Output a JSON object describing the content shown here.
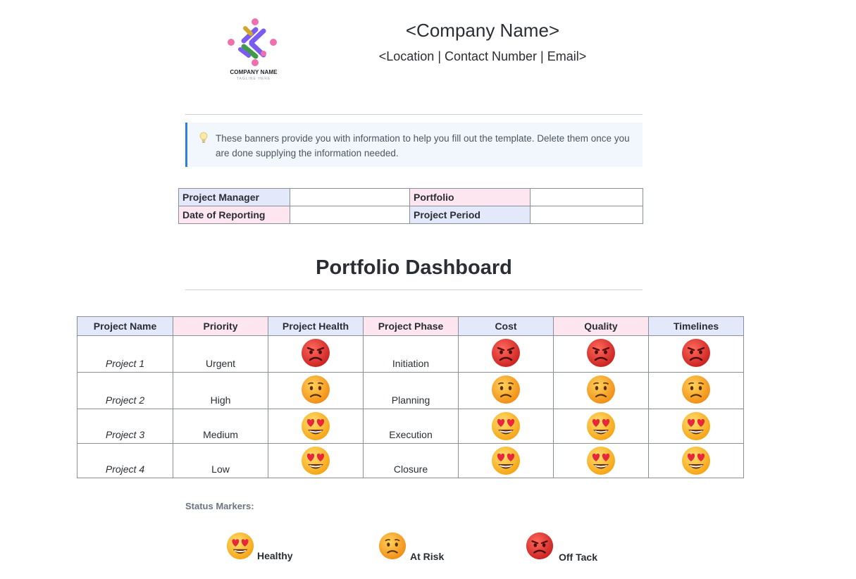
{
  "header": {
    "logo": {
      "icon": "company-logo-icon",
      "name": "COMPANY NAME",
      "tagline": "TAGLINE HERE"
    },
    "company_name": "<Company Name>",
    "contact_line": "<Location | Contact Number | Email>"
  },
  "banner": {
    "icon": "lightbulb-icon",
    "text": "These banners provide you with information to help you fill out the template. Delete them once you are done supplying the information needed."
  },
  "info_table": {
    "project_manager_label": "Project Manager",
    "project_manager_value": "",
    "portfolio_label": "Portfolio",
    "portfolio_value": "",
    "date_label": "Date of Reporting",
    "date_value": "",
    "period_label": "Project Period",
    "period_value": ""
  },
  "dashboard": {
    "title": "Portfolio Dashboard",
    "headers": [
      "Project Name",
      "Priority",
      "Project Health",
      "Project Phase",
      "Cost",
      "Quality",
      "Timelines"
    ],
    "rows": [
      {
        "name": "Project 1",
        "priority": "Urgent",
        "health": "off-track",
        "phase": "Initiation",
        "cost": "off-track",
        "quality": "off-track",
        "timelines": "off-track"
      },
      {
        "name": "Project 2",
        "priority": "High",
        "health": "at-risk",
        "phase": "Planning",
        "cost": "at-risk",
        "quality": "at-risk",
        "timelines": "at-risk"
      },
      {
        "name": "Project 3",
        "priority": "Medium",
        "health": "healthy",
        "phase": "Execution",
        "cost": "healthy",
        "quality": "healthy",
        "timelines": "healthy"
      },
      {
        "name": "Project 4",
        "priority": "Low",
        "health": "healthy",
        "phase": "Closure",
        "cost": "healthy",
        "quality": "healthy",
        "timelines": "healthy"
      }
    ]
  },
  "legend": {
    "title": "Status Markers:",
    "items": [
      {
        "status": "healthy",
        "icon": "heart-eyes-face-icon",
        "label": "Healthy"
      },
      {
        "status": "at-risk",
        "icon": "worried-face-icon",
        "label": "At Risk"
      },
      {
        "status": "off-track",
        "icon": "angry-face-icon",
        "label": "Off Tack"
      }
    ]
  },
  "colors": {
    "header_blue": "#e3e8fb",
    "header_pink": "#fde6ef",
    "banner_bg": "#f2f7fd",
    "banner_accent": "#2f80d6",
    "angry_red": "#e0332f",
    "worried_orange": "#f7a51c",
    "healthy_yellow": "#fbc02d"
  }
}
